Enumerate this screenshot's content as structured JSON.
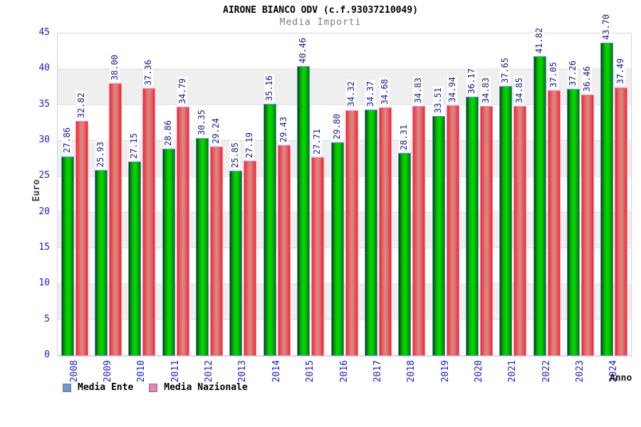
{
  "title": "AIRONE BIANCO ODV (c.f.93037210049)",
  "subtitle": "Media Importi",
  "axis": {
    "y_label": "Euro",
    "x_label": "Anno",
    "y_ticks": [
      0,
      5,
      10,
      15,
      20,
      25,
      30,
      35,
      40,
      45
    ]
  },
  "legend": {
    "ente_label": "Media Ente",
    "nazionale_label": "Media Nazionale",
    "ente_swatch_color": "#6a9ad0",
    "nazionale_swatch_color": "#ef7fb7"
  },
  "colors": {
    "tick_label_blue": "#2020cc",
    "value_label_navy": "#1a1a8c",
    "band_gray": "#efefef",
    "bar_ente_green": "#00dc00",
    "bar_ente_border": "#5b8dd6",
    "bar_nazionale_red": "#f92525",
    "bar_nazionale_center": "#d18f8f",
    "bar_nazionale_border": "#f07fb8"
  },
  "chart_data": {
    "type": "bar",
    "title": "AIRONE BIANCO ODV (c.f.93037210049)",
    "subtitle": "Media Importi",
    "xlabel": "Anno",
    "ylabel": "Euro",
    "ylim": [
      0,
      45
    ],
    "grid": true,
    "legend_position": "bottom-left",
    "categories": [
      "2008",
      "2009",
      "2010",
      "2011",
      "2012",
      "2013",
      "2014",
      "2015",
      "2016",
      "2017",
      "2018",
      "2019",
      "2020",
      "2021",
      "2022",
      "2023",
      "2024"
    ],
    "series": [
      {
        "name": "Media Ente",
        "values": [
          27.86,
          25.93,
          27.15,
          28.86,
          30.35,
          25.85,
          35.16,
          40.46,
          29.8,
          34.37,
          28.31,
          33.51,
          36.17,
          37.65,
          41.82,
          37.26,
          43.7
        ]
      },
      {
        "name": "Media Nazionale",
        "values": [
          32.82,
          38.0,
          37.36,
          34.79,
          29.24,
          27.19,
          29.43,
          27.71,
          34.32,
          34.68,
          34.83,
          34.94,
          34.83,
          34.85,
          37.05,
          36.46,
          37.49
        ]
      }
    ]
  }
}
